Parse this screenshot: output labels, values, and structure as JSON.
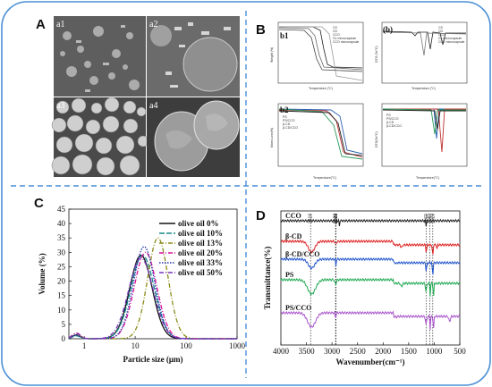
{
  "panels": {
    "A": {
      "label": "A",
      "sub_labels": [
        "a1",
        "a2",
        "a3",
        "a4"
      ]
    },
    "B": {
      "label": "B",
      "sub_labels": [
        "b1",
        "b2"
      ],
      "b1_left": {
        "legend": [
          "CS",
          "CD",
          "CCO",
          "GL microcapsule",
          "CCO microcapsule"
        ],
        "xlabel": "Temperature (°C)",
        "ylabel": "Weight (%)"
      },
      "b1_right": {
        "legend": [
          "CS",
          "CD",
          "CCO",
          "GL microcapsule",
          "CCO microcapsule"
        ],
        "xlabel": "Temperature (°C)",
        "ylabel": "DTG (%/°C)"
      },
      "b2_left": {
        "legend": [
          "PS",
          "PS/CCO",
          "β-CD",
          "β-CD/CCO"
        ],
        "xlabel": "Temperature(°C)",
        "ylabel": "Mass Loss(%)"
      },
      "b2_right": {
        "legend": [
          "PS",
          "PS/CCO",
          "β-CD",
          "β-CD/CCO"
        ],
        "xlabel": "Temperature(°C)",
        "ylabel": "DTG(%/°C)"
      }
    },
    "C": {
      "label": "C"
    },
    "D": {
      "label": "D"
    }
  },
  "chart_data": [
    {
      "type": "line",
      "panel": "C",
      "xlabel": "Particle size (μm)",
      "ylabel": "Volume (%)",
      "xscale": "log",
      "xlim": [
        0.5,
        1000
      ],
      "ylim": [
        0,
        45
      ],
      "xticks": [
        "1",
        "10",
        "100",
        "1000"
      ],
      "yticks": [
        "0",
        "5",
        "10",
        "15",
        "20",
        "25",
        "30",
        "35",
        "40",
        "45"
      ],
      "legend_position": "top-right",
      "series": [
        {
          "name": "olive oil 0%",
          "color": "#111111",
          "dash": "solid",
          "peak_x": 13,
          "peak_y": 29,
          "width": 0.22,
          "small_peak": 1.3
        },
        {
          "name": "olive oil 10%",
          "color": "#1a8a8a",
          "dash": "long",
          "peak_x": 14,
          "peak_y": 29,
          "width": 0.23,
          "small_peak": 1.0
        },
        {
          "name": "olive oil 13%",
          "color": "#8b8b1a",
          "dash": "dashdot",
          "peak_x": 28,
          "peak_y": 35,
          "width": 0.2,
          "small_peak": 1.5
        },
        {
          "name": "olive oil 20%",
          "color": "#dd1199",
          "dash": "dashdot",
          "peak_x": 16,
          "peak_y": 30,
          "width": 0.22,
          "small_peak": 2.0
        },
        {
          "name": "olive oil 33%",
          "color": "#2233aa",
          "dash": "dot",
          "peak_x": 15,
          "peak_y": 32,
          "width": 0.21,
          "small_peak": 1.2
        },
        {
          "name": "olive oil 50%",
          "color": "#7733bb",
          "dash": "dashdot",
          "peak_x": 13,
          "peak_y": 28,
          "width": 0.24,
          "small_peak": 1.8
        }
      ]
    },
    {
      "type": "line",
      "panel": "D",
      "xlabel": "Wavenumber(cm⁻¹)",
      "ylabel": "Transmittance(%)",
      "xlim": [
        4000,
        500
      ],
      "xticks": [
        "4000",
        "3500",
        "3000",
        "2500",
        "2000",
        "1500",
        "1000",
        "500"
      ],
      "peak_markers": [
        "3419",
        "2930",
        "2928",
        "2923",
        "1160",
        "1083",
        "1028"
      ],
      "series": [
        {
          "name": "CCO",
          "color": "#222222"
        },
        {
          "name": "β-CD",
          "color": "#dd2222"
        },
        {
          "name": "β-CD/CCO",
          "color": "#2255cc"
        },
        {
          "name": "PS",
          "color": "#22aa55"
        },
        {
          "name": "PS/CCO",
          "color": "#aa55cc"
        }
      ]
    }
  ]
}
